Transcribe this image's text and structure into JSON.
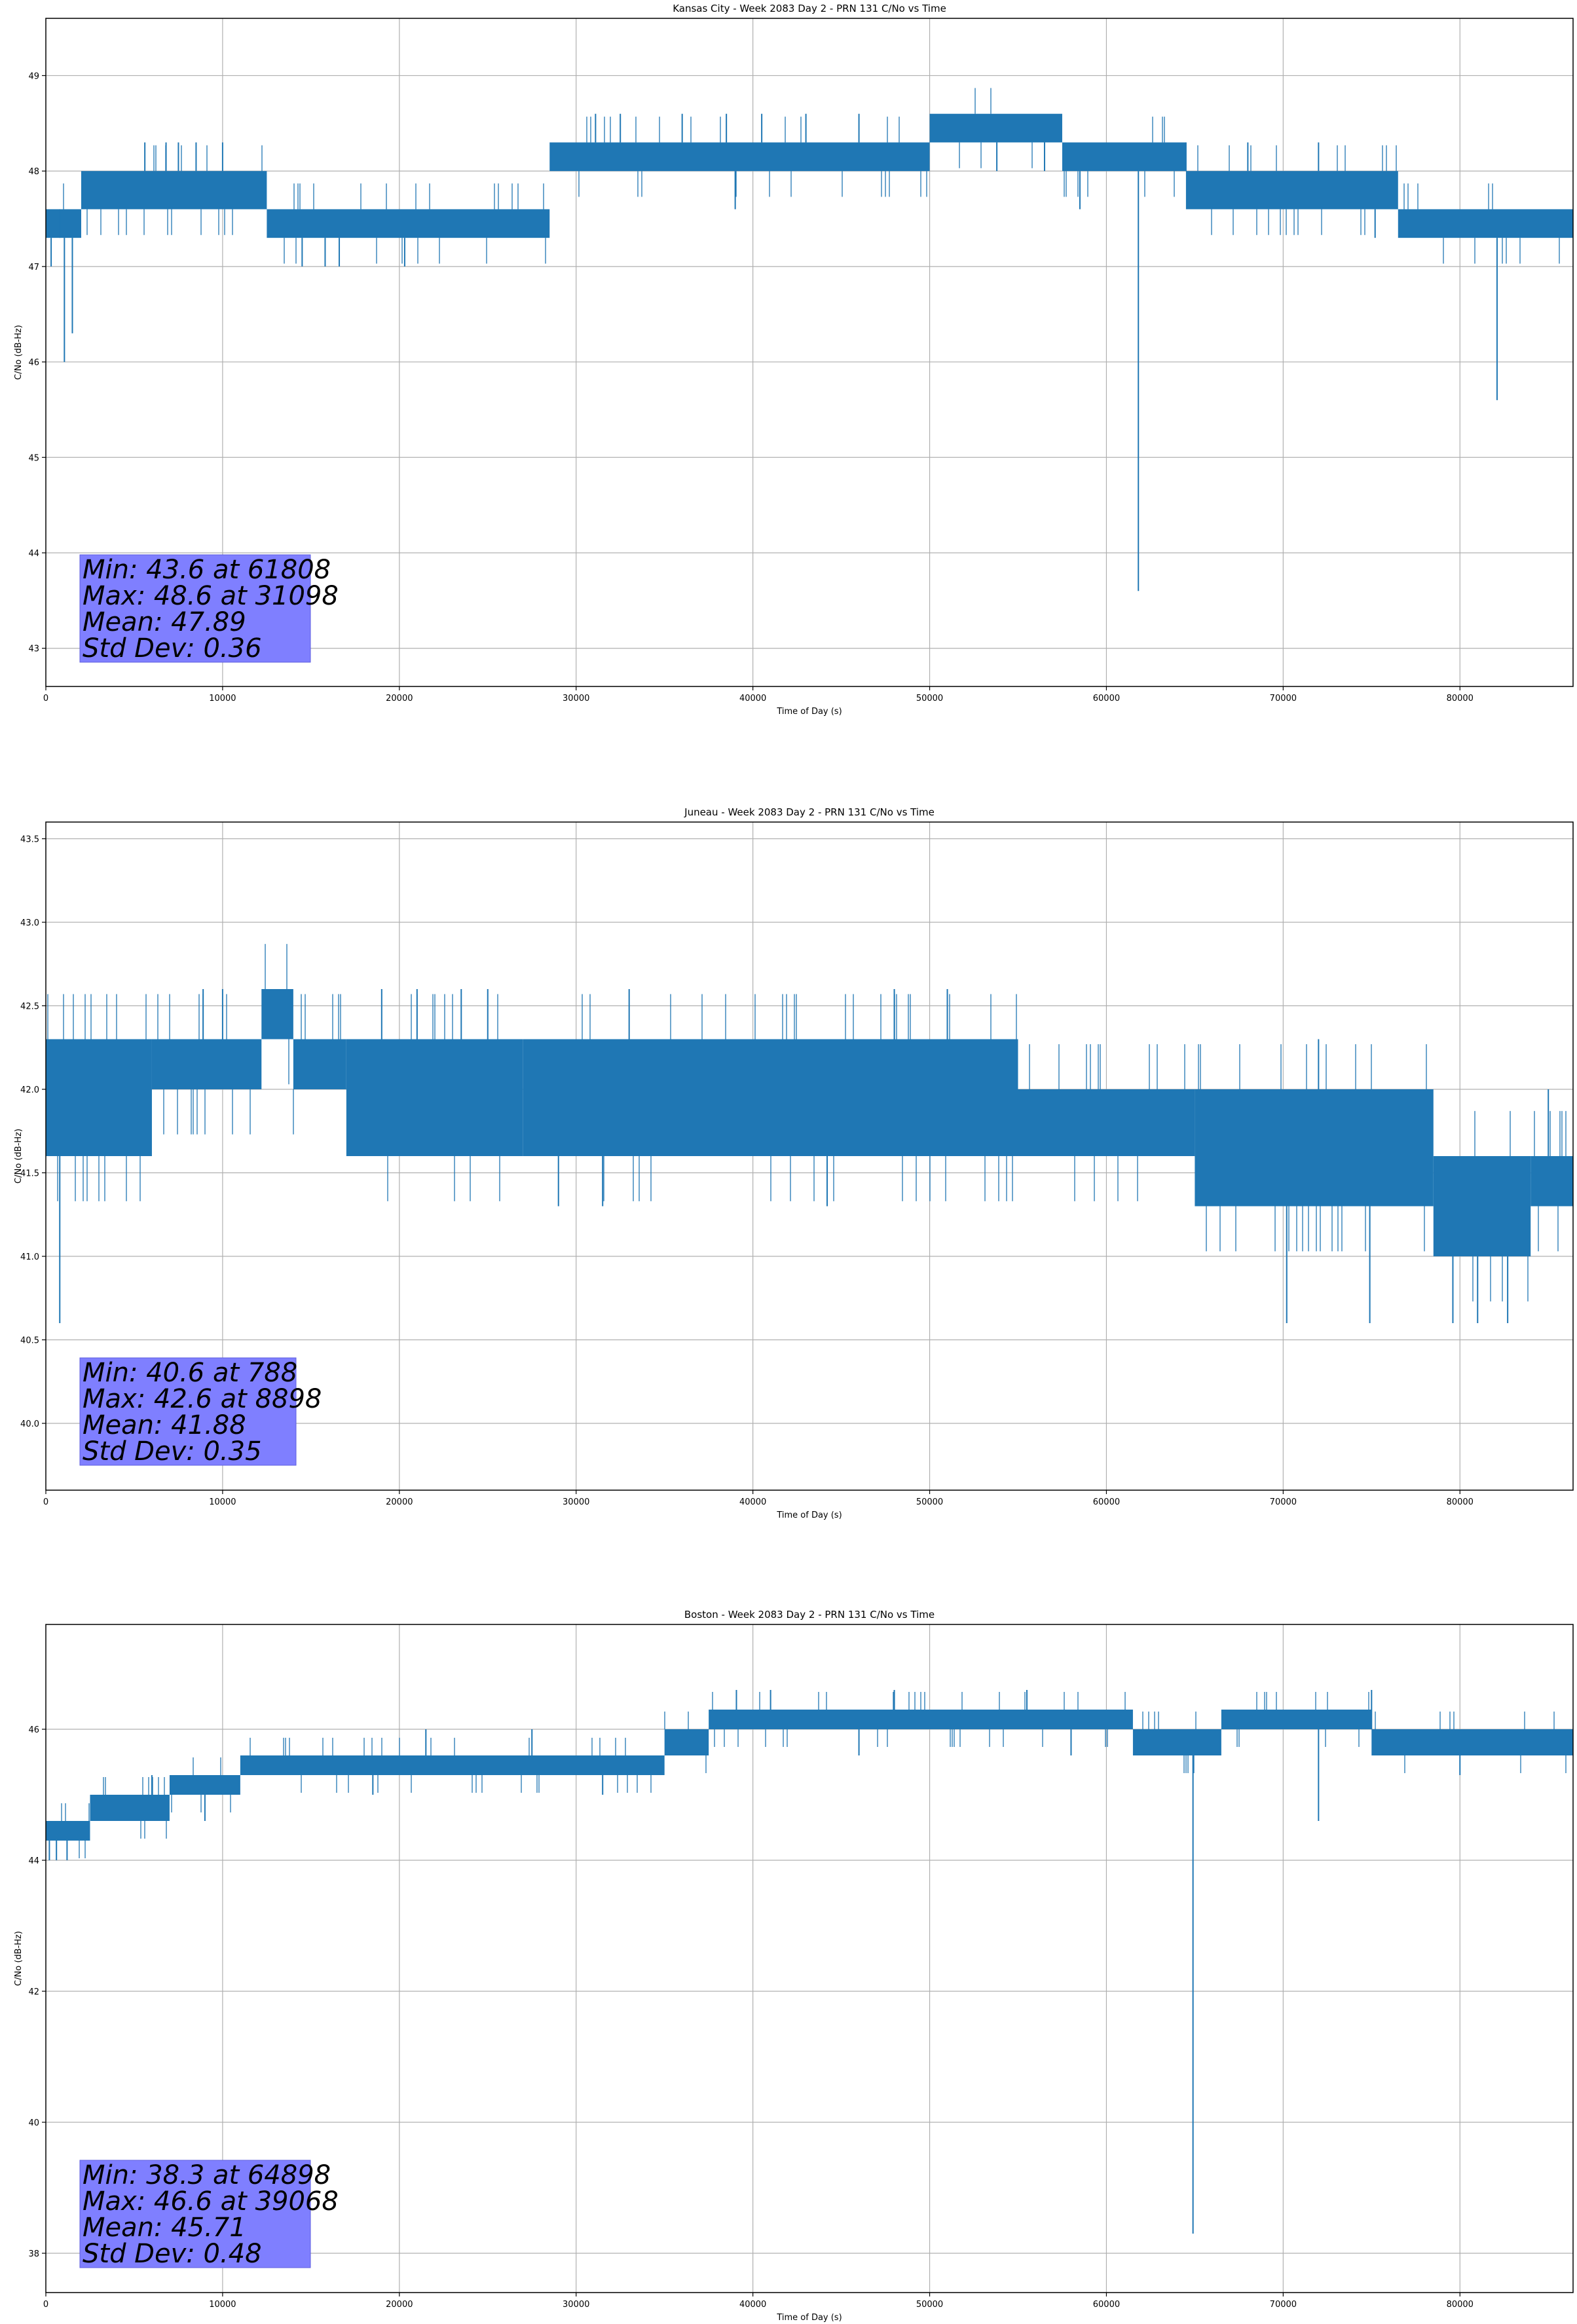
{
  "chart_data": [
    {
      "type": "line",
      "title": "Kansas City - Week 2083 Day 2 - PRN 131 C/No vs Time",
      "xlabel": "Time of Day (s)",
      "ylabel": "C/No (dB-Hz)",
      "xlim": [
        0,
        86400
      ],
      "ylim": [
        42.6,
        49.6
      ],
      "xticks": [
        0,
        10000,
        20000,
        30000,
        40000,
        50000,
        60000,
        70000,
        80000
      ],
      "xtick_labels": [
        "0",
        "10000",
        "20000",
        "30000",
        "40000",
        "50000",
        "60000",
        "70000",
        "80000"
      ],
      "yticks": [
        43,
        44,
        45,
        46,
        47,
        48,
        49
      ],
      "ytick_labels": [
        "43",
        "44",
        "45",
        "46",
        "47",
        "48",
        "49"
      ],
      "grid": true,
      "line_color": "#1f77b4",
      "series": [
        {
          "bands": [
            {
              "x0": 0,
              "x1": 2000,
              "lo": 47.3,
              "hi": 47.6
            },
            {
              "x0": 2000,
              "x1": 12500,
              "lo": 47.6,
              "hi": 48.0
            },
            {
              "x0": 12500,
              "x1": 28500,
              "lo": 47.3,
              "hi": 47.6
            },
            {
              "x0": 28500,
              "x1": 50000,
              "lo": 48.0,
              "hi": 48.3
            },
            {
              "x0": 50000,
              "x1": 57500,
              "lo": 48.3,
              "hi": 48.6
            },
            {
              "x0": 57500,
              "x1": 64500,
              "lo": 48.0,
              "hi": 48.3
            },
            {
              "x0": 64500,
              "x1": 76500,
              "lo": 47.6,
              "hi": 48.0
            },
            {
              "x0": 76500,
              "x1": 86400,
              "lo": 47.3,
              "hi": 47.6
            }
          ],
          "spikes": [
            {
              "x": 300,
              "y": 47.0
            },
            {
              "x": 788,
              "y": 47.3
            },
            {
              "x": 1050,
              "y": 46.0
            },
            {
              "x": 1500,
              "y": 46.3
            },
            {
              "x": 5600,
              "y": 48.3
            },
            {
              "x": 6800,
              "y": 48.3
            },
            {
              "x": 7500,
              "y": 48.3
            },
            {
              "x": 8500,
              "y": 48.3
            },
            {
              "x": 10000,
              "y": 48.3
            },
            {
              "x": 14500,
              "y": 47.0
            },
            {
              "x": 15800,
              "y": 47.0
            },
            {
              "x": 16600,
              "y": 47.0
            },
            {
              "x": 20300,
              "y": 47.0
            },
            {
              "x": 31098,
              "y": 48.6
            },
            {
              "x": 32500,
              "y": 48.6
            },
            {
              "x": 36000,
              "y": 48.6
            },
            {
              "x": 38500,
              "y": 48.6
            },
            {
              "x": 40500,
              "y": 48.6
            },
            {
              "x": 43000,
              "y": 48.6
            },
            {
              "x": 46000,
              "y": 48.6
            },
            {
              "x": 39000,
              "y": 47.6
            },
            {
              "x": 53800,
              "y": 48.0
            },
            {
              "x": 56500,
              "y": 48.0
            },
            {
              "x": 58500,
              "y": 47.6
            },
            {
              "x": 61808,
              "y": 43.6
            },
            {
              "x": 64500,
              "y": 48.3
            },
            {
              "x": 68000,
              "y": 48.3
            },
            {
              "x": 72000,
              "y": 48.3
            },
            {
              "x": 75200,
              "y": 47.3
            },
            {
              "x": 82100,
              "y": 45.6
            }
          ]
        }
      ],
      "annotation": {
        "lines": [
          "Min: 43.6 at 61808",
          "Max: 48.6 at 31098",
          "Mean: 47.89",
          "Std Dev: 0.36"
        ],
        "box_color": "#7f7fff"
      }
    },
    {
      "type": "line",
      "title": "Juneau - Week 2083 Day 2 - PRN 131 C/No vs Time",
      "xlabel": "Time of Day (s)",
      "ylabel": "C/No (dB-Hz)",
      "xlim": [
        0,
        86400
      ],
      "ylim": [
        39.6,
        43.6
      ],
      "xticks": [
        0,
        10000,
        20000,
        30000,
        40000,
        50000,
        60000,
        70000,
        80000
      ],
      "xtick_labels": [
        "0",
        "10000",
        "20000",
        "30000",
        "40000",
        "50000",
        "60000",
        "70000",
        "80000"
      ],
      "yticks": [
        40.0,
        40.5,
        41.0,
        41.5,
        42.0,
        42.5,
        43.0,
        43.5
      ],
      "ytick_labels": [
        "40.0",
        "40.5",
        "41.0",
        "41.5",
        "42.0",
        "42.5",
        "43.0",
        "43.5"
      ],
      "grid": true,
      "line_color": "#1f77b4",
      "series": [
        {
          "bands": [
            {
              "x0": 0,
              "x1": 6000,
              "lo": 41.6,
              "hi": 42.3
            },
            {
              "x0": 6000,
              "x1": 12200,
              "lo": 42.0,
              "hi": 42.3
            },
            {
              "x0": 12200,
              "x1": 14000,
              "lo": 42.3,
              "hi": 42.6
            },
            {
              "x0": 14000,
              "x1": 17000,
              "lo": 42.0,
              "hi": 42.3
            },
            {
              "x0": 17000,
              "x1": 27000,
              "lo": 41.6,
              "hi": 42.3
            },
            {
              "x0": 27000,
              "x1": 55000,
              "lo": 41.6,
              "hi": 42.3
            },
            {
              "x0": 55000,
              "x1": 65000,
              "lo": 41.6,
              "hi": 42.0
            },
            {
              "x0": 65000,
              "x1": 78500,
              "lo": 41.3,
              "hi": 42.0
            },
            {
              "x0": 78500,
              "x1": 84000,
              "lo": 41.0,
              "hi": 41.6
            },
            {
              "x0": 84000,
              "x1": 86400,
              "lo": 41.3,
              "hi": 41.6
            }
          ],
          "spikes": [
            {
              "x": 788,
              "y": 40.6
            },
            {
              "x": 8898,
              "y": 42.6
            },
            {
              "x": 10000,
              "y": 42.6
            },
            {
              "x": 19000,
              "y": 42.6
            },
            {
              "x": 21000,
              "y": 42.6
            },
            {
              "x": 23500,
              "y": 42.6
            },
            {
              "x": 25000,
              "y": 42.6
            },
            {
              "x": 29000,
              "y": 41.3
            },
            {
              "x": 31500,
              "y": 41.3
            },
            {
              "x": 33000,
              "y": 42.6
            },
            {
              "x": 44200,
              "y": 41.3
            },
            {
              "x": 48000,
              "y": 42.6
            },
            {
              "x": 51000,
              "y": 42.6
            },
            {
              "x": 70200,
              "y": 40.6
            },
            {
              "x": 72000,
              "y": 42.3
            },
            {
              "x": 74900,
              "y": 40.6
            },
            {
              "x": 79600,
              "y": 40.6
            },
            {
              "x": 81000,
              "y": 40.6
            },
            {
              "x": 82700,
              "y": 40.6
            },
            {
              "x": 85000,
              "y": 42.0
            }
          ]
        }
      ],
      "annotation": {
        "lines": [
          "Min: 40.6 at 788",
          "Max: 42.6 at 8898",
          "Mean: 41.88",
          "Std Dev: 0.35"
        ],
        "box_color": "#7f7fff"
      }
    },
    {
      "type": "line",
      "title": "Boston - Week 2083 Day 2 - PRN 131 C/No vs Time",
      "xlabel": "Time of Day (s)",
      "ylabel": "C/No (dB-Hz)",
      "xlim": [
        0,
        86400
      ],
      "ylim": [
        37.4,
        47.6
      ],
      "xticks": [
        0,
        10000,
        20000,
        30000,
        40000,
        50000,
        60000,
        70000,
        80000
      ],
      "xtick_labels": [
        "0",
        "10000",
        "20000",
        "30000",
        "40000",
        "50000",
        "60000",
        "70000",
        "80000"
      ],
      "yticks": [
        38,
        40,
        42,
        44,
        46
      ],
      "ytick_labels": [
        "38",
        "40",
        "42",
        "44",
        "46"
      ],
      "grid": true,
      "line_color": "#1f77b4",
      "series": [
        {
          "bands": [
            {
              "x0": 0,
              "x1": 2500,
              "lo": 44.3,
              "hi": 44.6
            },
            {
              "x0": 2500,
              "x1": 7000,
              "lo": 44.6,
              "hi": 45.0
            },
            {
              "x0": 7000,
              "x1": 11000,
              "lo": 45.0,
              "hi": 45.3
            },
            {
              "x0": 11000,
              "x1": 35000,
              "lo": 45.3,
              "hi": 45.6
            },
            {
              "x0": 35000,
              "x1": 37500,
              "lo": 45.6,
              "hi": 46.0
            },
            {
              "x0": 37500,
              "x1": 61500,
              "lo": 46.0,
              "hi": 46.3
            },
            {
              "x0": 61500,
              "x1": 66500,
              "lo": 45.6,
              "hi": 46.0
            },
            {
              "x0": 66500,
              "x1": 75000,
              "lo": 46.0,
              "hi": 46.3
            },
            {
              "x0": 75000,
              "x1": 86400,
              "lo": 45.6,
              "hi": 46.0
            }
          ],
          "spikes": [
            {
              "x": 200,
              "y": 44.0
            },
            {
              "x": 600,
              "y": 44.0
            },
            {
              "x": 1200,
              "y": 44.0
            },
            {
              "x": 6000,
              "y": 45.3
            },
            {
              "x": 9000,
              "y": 44.6
            },
            {
              "x": 18500,
              "y": 45.0
            },
            {
              "x": 21500,
              "y": 46.0
            },
            {
              "x": 27500,
              "y": 46.0
            },
            {
              "x": 31500,
              "y": 45.0
            },
            {
              "x": 39068,
              "y": 46.6
            },
            {
              "x": 41000,
              "y": 46.6
            },
            {
              "x": 46000,
              "y": 45.6
            },
            {
              "x": 48000,
              "y": 46.6
            },
            {
              "x": 55500,
              "y": 46.6
            },
            {
              "x": 58000,
              "y": 45.6
            },
            {
              "x": 64898,
              "y": 38.3
            },
            {
              "x": 72000,
              "y": 44.6
            },
            {
              "x": 75000,
              "y": 46.6
            },
            {
              "x": 80000,
              "y": 45.3
            }
          ]
        }
      ],
      "annotation": {
        "lines": [
          "Min: 38.3 at 64898",
          "Max: 46.6 at 39068",
          "Mean: 45.71",
          "Std Dev: 0.48"
        ],
        "box_color": "#7f7fff"
      }
    }
  ]
}
